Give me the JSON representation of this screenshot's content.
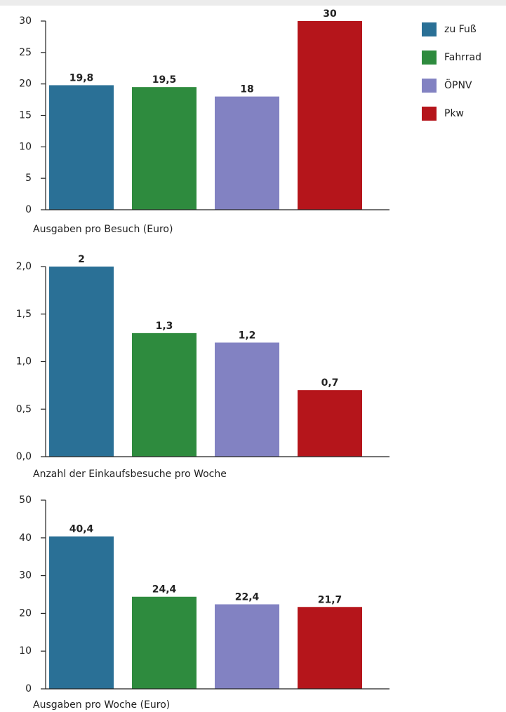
{
  "legend": [
    {
      "name": "zu Fuß",
      "color": "#2a7096"
    },
    {
      "name": "Fahrrad",
      "color": "#2e8b3e"
    },
    {
      "name": "ÖPNV",
      "color": "#8282c2"
    },
    {
      "name": "Pkw",
      "color": "#b5151b"
    }
  ],
  "chart_data": [
    {
      "type": "bar",
      "xlabel": "Ausgaben pro Besuch (Euro)",
      "values": [
        19.8,
        19.5,
        18,
        30
      ],
      "value_labels": [
        "19,8",
        "19,5",
        "18",
        "30"
      ],
      "colors": [
        "#2a7096",
        "#2e8b3e",
        "#8282c2",
        "#b5151b"
      ],
      "ylim": [
        0,
        30
      ],
      "yticks": [
        0,
        5,
        10,
        15,
        20,
        25,
        30
      ]
    },
    {
      "type": "bar",
      "xlabel": "Anzahl der Einkaufsbesuche pro Woche",
      "values": [
        2,
        1.3,
        1.2,
        0.7
      ],
      "value_labels": [
        "2",
        "1,3",
        "1,2",
        "0,7"
      ],
      "colors": [
        "#2a7096",
        "#2e8b3e",
        "#8282c2",
        "#b5151b"
      ],
      "ylim": [
        0,
        2
      ],
      "yticks": [
        {
          "value": 0,
          "label": "0,0"
        },
        {
          "value": 0.5,
          "label": "0,5"
        },
        {
          "value": 1,
          "label": "1,0"
        },
        {
          "value": 1.5,
          "label": "1,5"
        },
        {
          "value": 2,
          "label": "2,0"
        }
      ]
    },
    {
      "type": "bar",
      "xlabel": "Ausgaben pro Woche (Euro)",
      "values": [
        40.4,
        24.4,
        22.4,
        21.7
      ],
      "value_labels": [
        "40,4",
        "24,4",
        "22,4",
        "21,7"
      ],
      "colors": [
        "#2a7096",
        "#2e8b3e",
        "#8282c2",
        "#b5151b"
      ],
      "ylim": [
        0,
        50
      ],
      "yticks": [
        0,
        10,
        20,
        30,
        40,
        50
      ]
    }
  ]
}
